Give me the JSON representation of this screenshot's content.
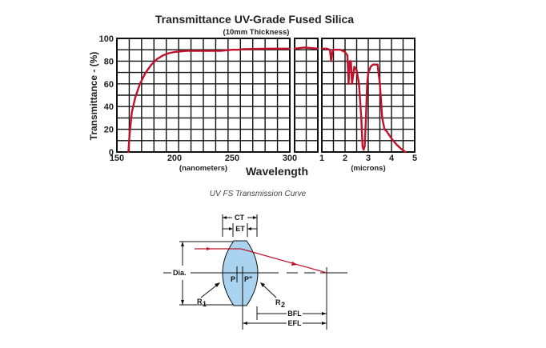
{
  "chart_data": {
    "type": "line",
    "title": "Transmittance UV-Grade Fused Silica",
    "subtitle": "(10mm Thickness)",
    "ylabel": "Transmittance - (%)",
    "xlabel": "Wavelength",
    "ylim": [
      0,
      100
    ],
    "yticks": [
      "0",
      "20",
      "40",
      "60",
      "80",
      "100"
    ],
    "grid": true,
    "panels": [
      {
        "unit_label": "(nanometers)",
        "xlim": [
          150,
          300
        ],
        "xticks": [
          "150",
          "200",
          "250",
          "300"
        ],
        "series": [
          {
            "x": [
              160,
              161,
              163,
              166,
              170,
              175,
              180,
              185,
              190,
              195,
              200,
              210,
              220,
              240,
              250,
              255,
              260,
              280,
              300
            ],
            "y": [
              0,
              15,
              35,
              48,
              60,
              70,
              77,
              82,
              85,
              87,
              88,
              89,
              89,
              89,
              90,
              90,
              90.5,
              91,
              91
            ]
          }
        ]
      },
      {
        "unit_label": "",
        "xlim": [
          300,
          400
        ],
        "xticks": [],
        "series": [
          {
            "x": [
              300,
              340,
              400
            ],
            "y": [
              91,
              92,
              91
            ]
          }
        ]
      },
      {
        "unit_label": "(microns)",
        "xlim": [
          1,
          5
        ],
        "xticks": [
          "1",
          "2",
          "3",
          "4",
          "5"
        ],
        "series": [
          {
            "x": [
              1.0,
              1.2,
              1.35,
              1.4,
              1.45,
              1.5,
              1.6,
              1.8,
              2.0,
              2.1,
              2.15,
              2.2,
              2.25,
              2.3,
              2.4,
              2.5,
              2.6,
              2.7,
              2.75,
              2.8,
              2.85,
              2.9,
              2.95,
              3.0,
              3.05,
              3.1,
              3.2,
              3.4,
              3.5,
              3.6,
              3.7,
              3.8,
              4.0,
              4.2,
              4.4,
              4.6
            ],
            "y": [
              91,
              91,
              90,
              80,
              88,
              90,
              90,
              90,
              88,
              85,
              60,
              80,
              80,
              60,
              75,
              72,
              60,
              30,
              5,
              2,
              5,
              30,
              60,
              70,
              72,
              75,
              77,
              77,
              60,
              30,
              20,
              18,
              12,
              7,
              3,
              0
            ]
          }
        ]
      }
    ]
  },
  "caption": "UV FS Transmission Curve",
  "diagram": {
    "ct": "CT",
    "et": "ET",
    "dia": "Dia.",
    "p": "P",
    "p2": "P\"",
    "r1": "R",
    "r1_sub": "1",
    "r2": "R",
    "r2_sub": "2",
    "bfl": "BFL",
    "efl": "EFL"
  },
  "colors": {
    "curve": "#c0122b",
    "lens_fill": "#a9d3ee",
    "ray": "#c0122b"
  }
}
